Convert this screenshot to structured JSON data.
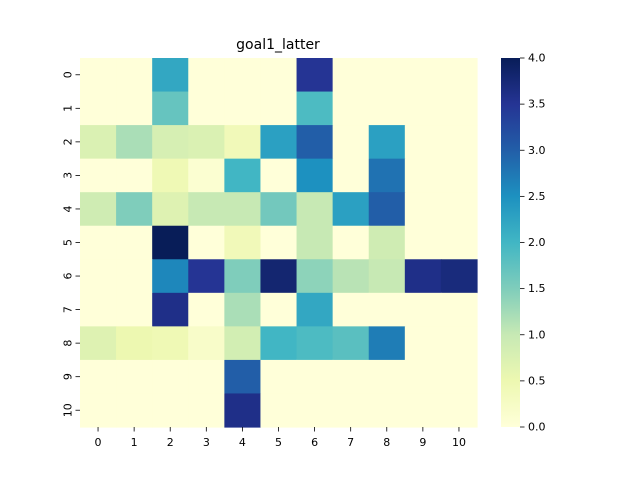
{
  "chart_data": {
    "type": "heatmap",
    "title": "goal1_latter",
    "xlabel": "",
    "ylabel": "",
    "x_ticks": [
      "0",
      "1",
      "2",
      "3",
      "4",
      "5",
      "6",
      "7",
      "8",
      "9",
      "10"
    ],
    "y_ticks": [
      "0",
      "1",
      "2",
      "3",
      "4",
      "5",
      "6",
      "7",
      "8",
      "9",
      "10"
    ],
    "values": [
      [
        0.0,
        0.0,
        2.2,
        0.0,
        0.0,
        0.0,
        3.5,
        0.0,
        0.0,
        0.0,
        0.0
      ],
      [
        0.0,
        0.0,
        1.7,
        0.0,
        0.0,
        0.0,
        1.9,
        0.0,
        0.0,
        0.0,
        0.0
      ],
      [
        0.75,
        1.2,
        0.8,
        0.75,
        0.4,
        2.3,
        3.0,
        0.0,
        2.3,
        0.0,
        0.0
      ],
      [
        0.0,
        0.0,
        0.45,
        0.1,
        2.0,
        0.0,
        2.5,
        0.0,
        2.8,
        0.0,
        0.0
      ],
      [
        0.9,
        1.5,
        0.7,
        1.0,
        1.0,
        1.6,
        1.0,
        2.3,
        3.0,
        0.0,
        0.0
      ],
      [
        0.0,
        0.0,
        4.0,
        0.0,
        0.4,
        0.0,
        1.0,
        0.0,
        0.9,
        0.0,
        0.0
      ],
      [
        0.0,
        0.0,
        2.6,
        3.5,
        1.5,
        3.8,
        1.4,
        1.1,
        1.0,
        3.6,
        3.7
      ],
      [
        0.0,
        0.0,
        3.6,
        0.0,
        1.2,
        0.0,
        2.2,
        0.0,
        0.0,
        0.0,
        0.0
      ],
      [
        0.7,
        0.5,
        0.45,
        0.2,
        0.85,
        2.0,
        1.9,
        1.8,
        2.7,
        0.0,
        0.0
      ],
      [
        0.0,
        0.0,
        0.0,
        0.0,
        3.0,
        0.0,
        0.0,
        0.0,
        0.0,
        0.0,
        0.0
      ],
      [
        0.0,
        0.0,
        0.0,
        0.0,
        3.6,
        0.0,
        0.0,
        0.0,
        0.0,
        0.0,
        0.0
      ]
    ],
    "vmin": 0.0,
    "vmax": 4.0,
    "colormap": "YlGnBu",
    "colormap_stops": [
      "#ffffd9",
      "#edf8b1",
      "#c7e9b4",
      "#7fcdbb",
      "#41b6c4",
      "#1d91c0",
      "#225ea8",
      "#253494",
      "#081d58"
    ],
    "colorbar_ticks": [
      "0.0",
      "0.5",
      "1.0",
      "1.5",
      "2.0",
      "2.5",
      "3.0",
      "3.5",
      "4.0"
    ],
    "grid": false,
    "legend": "colorbar-right"
  }
}
